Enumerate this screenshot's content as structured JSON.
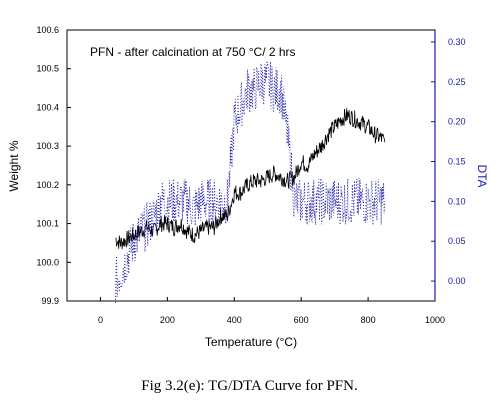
{
  "caption": "Fig 3.2(e): TG/DTA Curve for PFN.",
  "chart_data": {
    "type": "line",
    "annotation": "PFN - after calcination at 750 °C/ 2 hrs",
    "xlabel": "Temperature (°C)",
    "ylabel": "Weight %",
    "y2label": "DTA",
    "xlim": [
      -100,
      1000
    ],
    "ylim": [
      99.9,
      100.6
    ],
    "y2lim": [
      -0.025,
      0.315
    ],
    "x_ticks": [
      "0",
      "200",
      "400",
      "600",
      "800",
      "1000"
    ],
    "y_ticks": [
      "99.9",
      "100.0",
      "100.1",
      "100.2",
      "100.3",
      "100.4",
      "100.5",
      "100.6"
    ],
    "y2_ticks": [
      "0.00",
      "0.05",
      "0.10",
      "0.15",
      "0.20",
      "0.25",
      "0.30"
    ],
    "series": [
      {
        "axis": "left",
        "color": "#000000",
        "style": "solid",
        "x": [
          45,
          60,
          80,
          100,
          120,
          140,
          160,
          180,
          200,
          220,
          240,
          260,
          280,
          300,
          320,
          340,
          360,
          380,
          400,
          420,
          440,
          460,
          480,
          500,
          520,
          540,
          560,
          580,
          600,
          620,
          640,
          660,
          680,
          700,
          720,
          740,
          760,
          780,
          800,
          820,
          840,
          850
        ],
        "y": [
          100.06,
          100.05,
          100.06,
          100.07,
          100.08,
          100.09,
          100.08,
          100.1,
          100.1,
          100.09,
          100.1,
          100.08,
          100.07,
          100.08,
          100.09,
          100.09,
          100.12,
          100.12,
          100.18,
          100.18,
          100.2,
          100.21,
          100.21,
          100.22,
          100.23,
          100.22,
          100.21,
          100.22,
          100.26,
          100.25,
          100.28,
          100.3,
          100.33,
          100.35,
          100.37,
          100.38,
          100.37,
          100.36,
          100.35,
          100.33,
          100.32,
          100.31
        ],
        "noise": 0.022
      },
      {
        "axis": "right",
        "color": "#1a1aa6",
        "style": "dotted",
        "x": [
          45,
          60,
          80,
          100,
          120,
          140,
          160,
          180,
          200,
          220,
          240,
          260,
          280,
          300,
          320,
          340,
          360,
          380,
          390,
          400,
          420,
          440,
          460,
          480,
          500,
          520,
          540,
          560,
          580,
          600,
          620,
          640,
          660,
          680,
          700,
          720,
          740,
          760,
          780,
          800,
          820,
          840,
          850
        ],
        "y": [
          0.0,
          0.01,
          0.03,
          0.05,
          0.06,
          0.07,
          0.08,
          0.1,
          0.1,
          0.1,
          0.1,
          0.1,
          0.09,
          0.1,
          0.1,
          0.1,
          0.1,
          0.1,
          0.15,
          0.2,
          0.22,
          0.24,
          0.24,
          0.25,
          0.25,
          0.24,
          0.24,
          0.18,
          0.1,
          0.1,
          0.1,
          0.1,
          0.1,
          0.1,
          0.1,
          0.1,
          0.1,
          0.1,
          0.1,
          0.1,
          0.1,
          0.1,
          0.1
        ],
        "noise": 0.03
      }
    ]
  }
}
